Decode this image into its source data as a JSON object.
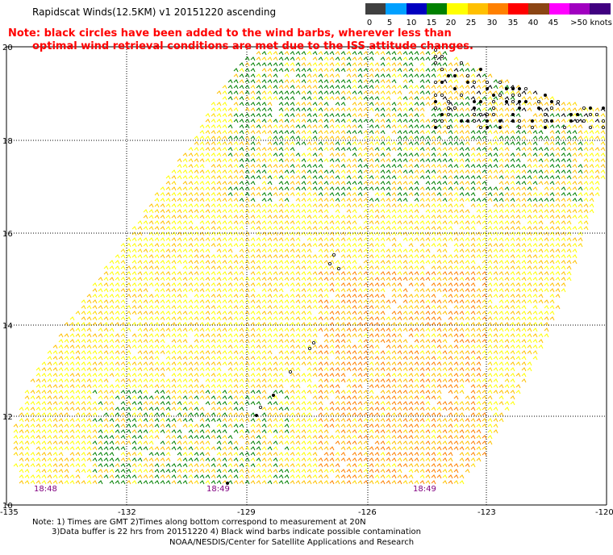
{
  "title": "Rapidscat Winds(12.5KM) v1 20151220 ascending",
  "note_line1": "Note: black circles have been added to the wind barbs, wherever less than",
  "note_line2": "optimal wind retrieval conditions are met due to the ISS attitude changes.",
  "legend": {
    "colors": [
      "#404040",
      "#00a0ff",
      "#0000c0",
      "#008000",
      "#ffff00",
      "#ffc000",
      "#ff8000",
      "#ff0000",
      "#8b4513",
      "#ff00ff",
      "#a000c0",
      "#400080"
    ],
    "labels": [
      "0",
      "5",
      "10",
      "15",
      "20",
      "25",
      "30",
      "35",
      "40",
      "45",
      ">50 knots"
    ]
  },
  "map": {
    "lat_labels": [
      "20",
      "18",
      "16",
      "14",
      "12",
      "10"
    ],
    "lon_labels": [
      "-135",
      "-132",
      "-129",
      "-126",
      "-123",
      "-120"
    ],
    "time_labels": [
      "18:48",
      "18:49",
      "18:49"
    ]
  },
  "footnote_line1": "Note: 1) Times are GMT 2)Times along bottom correspond to measurement at 20N",
  "footnote_line2": "3)Data buffer is 22 hrs from 20151220 4) Black wind barbs indicate possible contamination",
  "credit": "NOAA/NESDIS/Center for Satellite Applications and Research"
}
